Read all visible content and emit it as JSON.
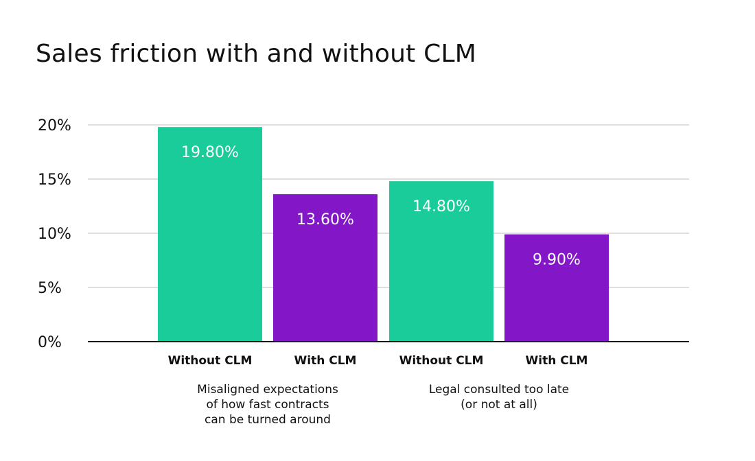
{
  "chart_data": {
    "type": "bar",
    "title": "Sales friction with and without CLM",
    "xlabel": "",
    "ylabel": "",
    "ylim": [
      0,
      20
    ],
    "yticks": [
      0,
      5,
      10,
      15,
      20
    ],
    "ytick_labels": [
      "0%",
      "5%",
      "10%",
      "15%",
      "20%"
    ],
    "grid": true,
    "groups": [
      {
        "label_lines": [
          "Misaligned expectations",
          "of how fast contracts",
          "can be turned around"
        ],
        "bars": [
          {
            "category": "Without CLM",
            "value": 19.8,
            "label": "19.80%"
          },
          {
            "category": "With CLM",
            "value": 13.6,
            "label": "13.60%"
          }
        ]
      },
      {
        "label_lines": [
          "Legal consulted too late",
          "(or not at all)"
        ],
        "bars": [
          {
            "category": "Without CLM",
            "value": 14.8,
            "label": "14.80%"
          },
          {
            "category": "With CLM",
            "value": 9.9,
            "label": "9.90%"
          }
        ]
      }
    ],
    "series_colors": {
      "Without CLM": "#19cc99",
      "With CLM": "#8317c7"
    }
  }
}
